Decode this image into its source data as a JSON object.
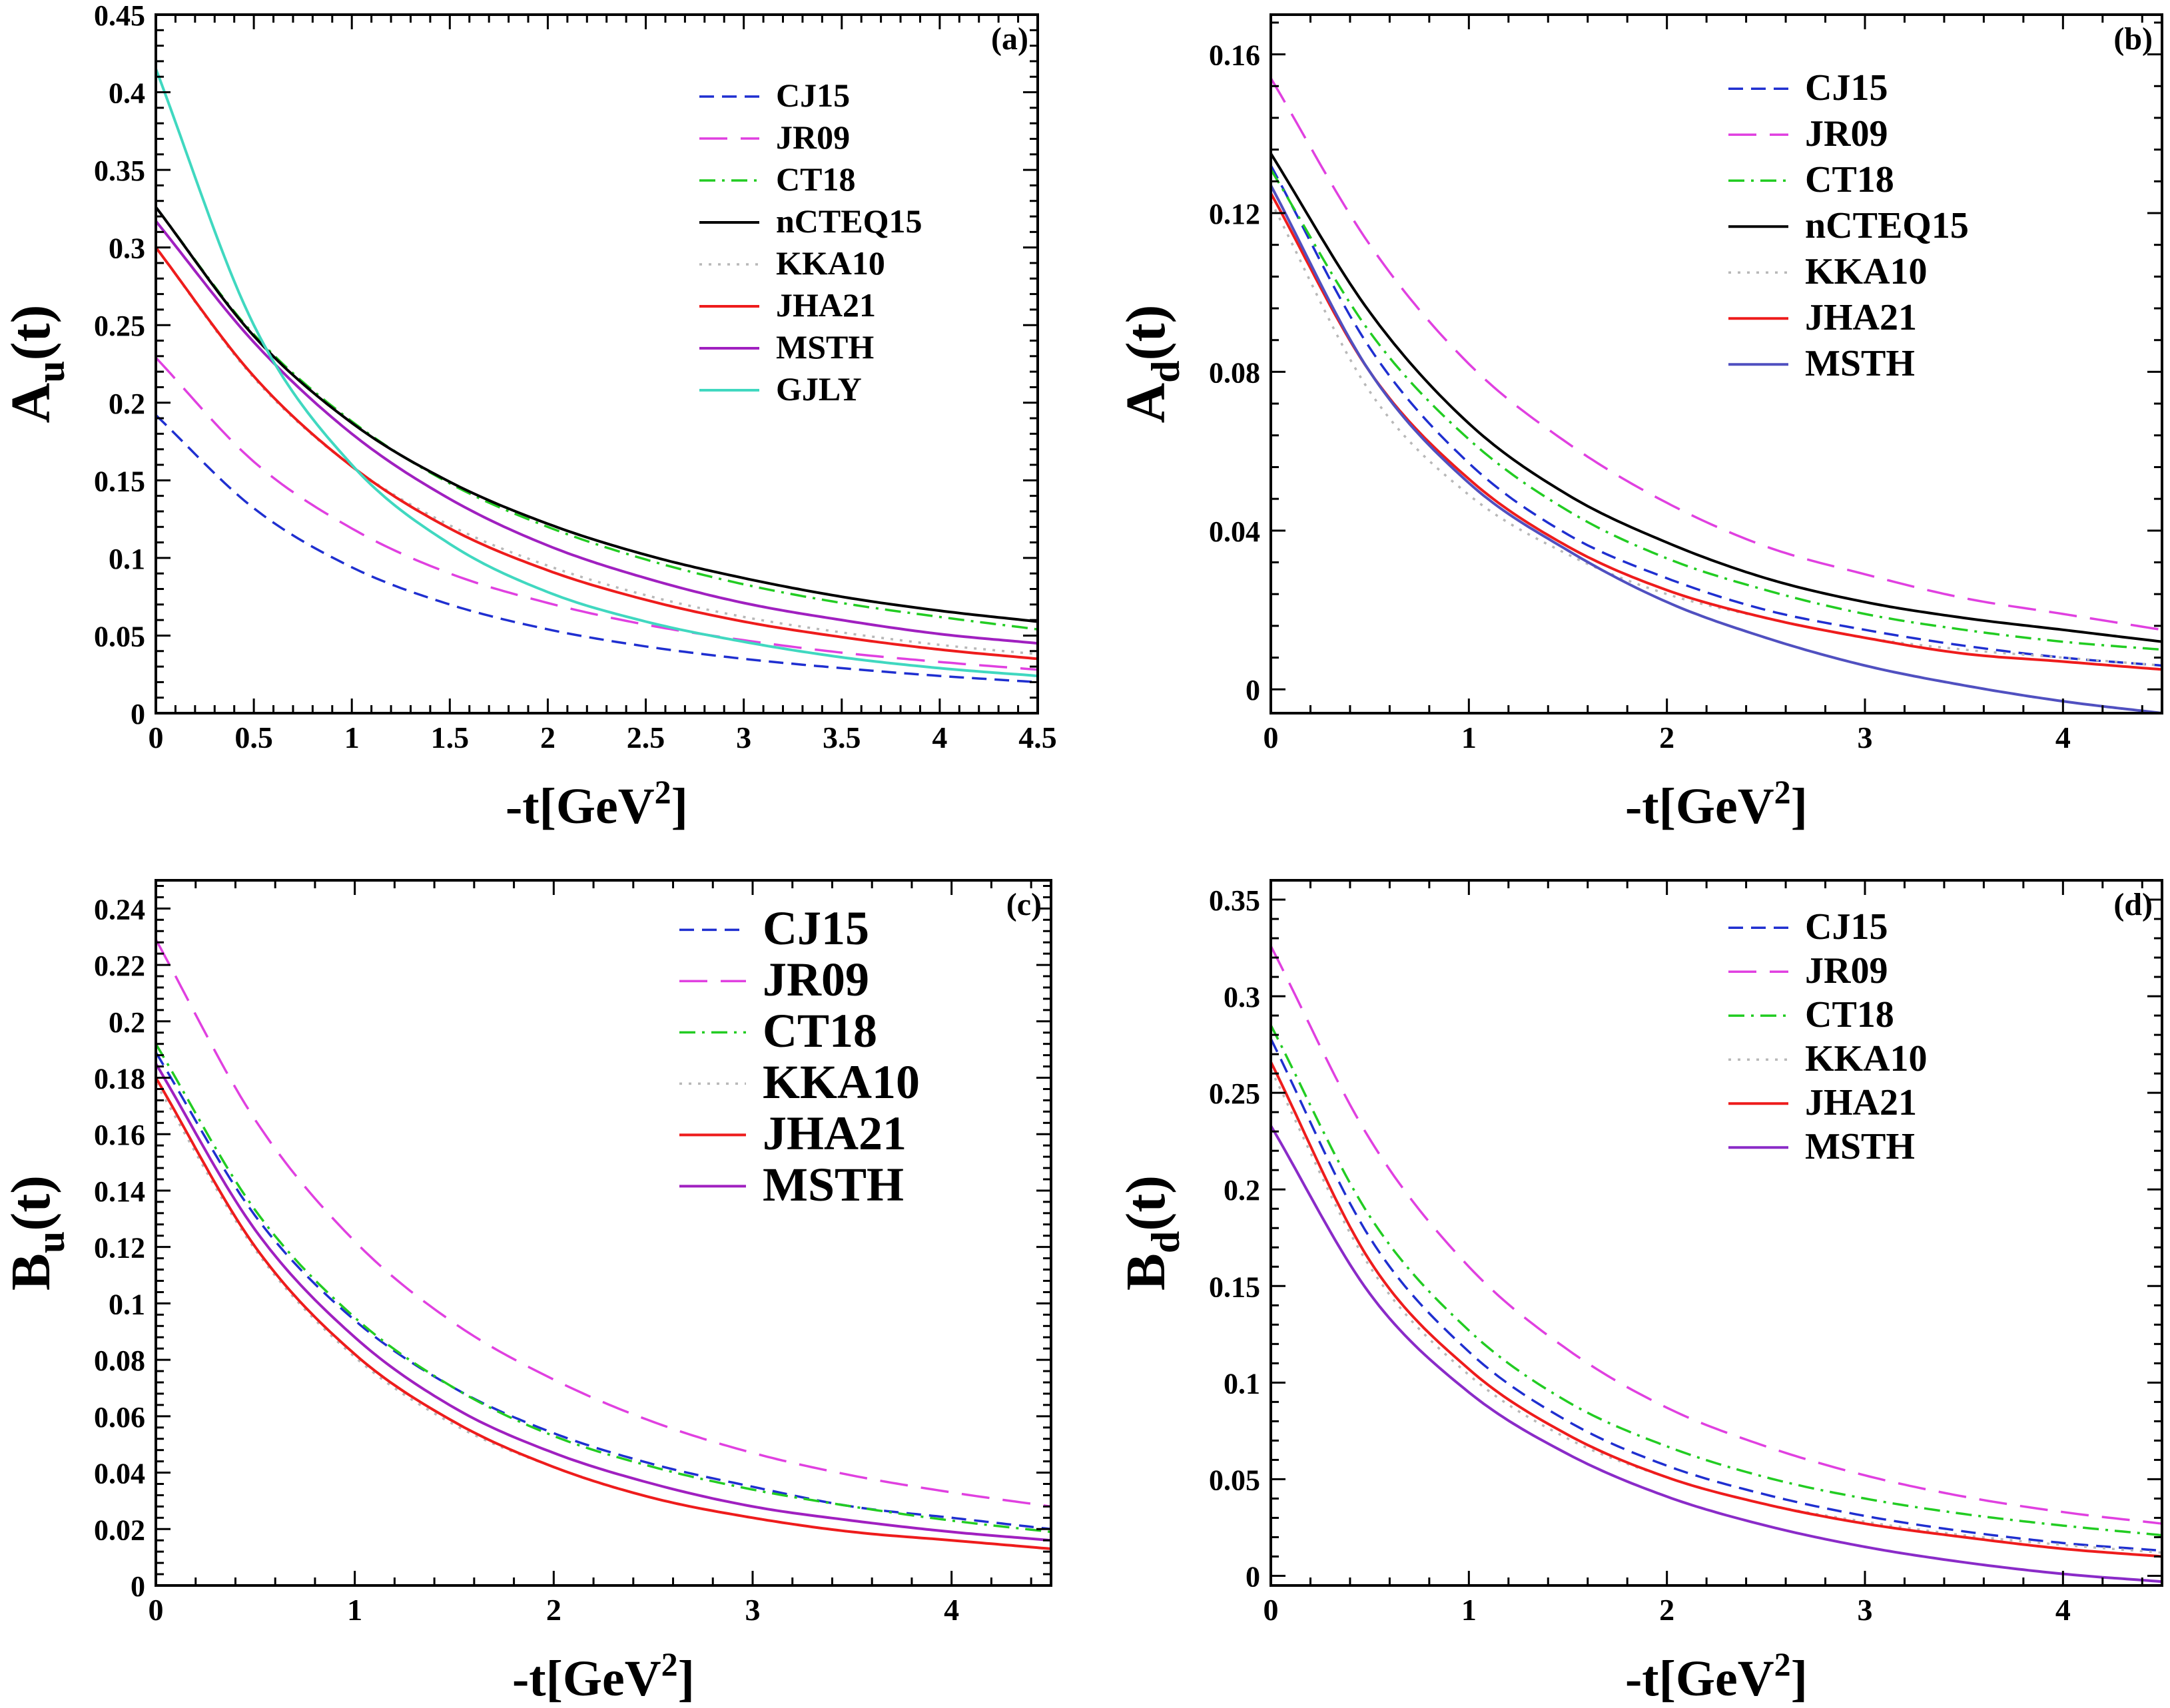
{
  "colors": {
    "CJ15": "#1f2fd0",
    "JR09": "#e040e0",
    "CT18": "#22cc22",
    "nCTEQ15": "#000000",
    "KKA10": "#b8b8b8",
    "JHA21": "#ee1c1c",
    "MSTH_a": "#a020c0",
    "MSTH_b": "#5050c0",
    "MSTH_c": "#a020c0",
    "MSTH_d": "#8a2bc8",
    "GJLY": "#40d8c0",
    "KKA10_accent": "#f0a030"
  },
  "chart_data": [
    {
      "type": "line",
      "panel_label": "(a)",
      "xlabel": "-t[GeV",
      "xlabel_sup": "2",
      "xlabel_close": "]",
      "ylabel_main": "A",
      "ylabel_sub": "u",
      "ylabel_tail": "(t)",
      "xlim": [
        0,
        4.5
      ],
      "ylim": [
        0,
        0.45
      ],
      "xticks": [
        0,
        0.5,
        1,
        1.5,
        2,
        2.5,
        3,
        3.5,
        4,
        4.5
      ],
      "xtick_labels": [
        "0",
        "0.5",
        "1",
        "1.5",
        "2",
        "2.5",
        "3",
        "3.5",
        "4",
        "4.5"
      ],
      "yticks": [
        0,
        0.05,
        0.1,
        0.15,
        0.2,
        0.25,
        0.3,
        0.35,
        0.4,
        0.45
      ],
      "ytick_labels": [
        "0",
        "0.05",
        "0.1",
        "0.15",
        "0.2",
        "0.25",
        "0.3",
        "0.35",
        "0.4",
        "0.45"
      ],
      "grid": false,
      "legend": "top-right",
      "x": [
        0,
        0.5,
        1,
        1.5,
        2,
        2.5,
        3,
        3.5,
        4,
        4.5
      ],
      "series": [
        {
          "name": "CJ15",
          "style": "dash",
          "values": [
            0.192,
            0.132,
            0.094,
            0.07,
            0.054,
            0.043,
            0.035,
            0.029,
            0.024,
            0.02
          ]
        },
        {
          "name": "JR09",
          "style": "longdash",
          "values": [
            0.229,
            0.162,
            0.119,
            0.09,
            0.071,
            0.057,
            0.047,
            0.039,
            0.033,
            0.028
          ]
        },
        {
          "name": "CT18",
          "style": "dashdot",
          "values": [
            0.326,
            0.244,
            0.188,
            0.148,
            0.12,
            0.099,
            0.083,
            0.071,
            0.062,
            0.054
          ]
        },
        {
          "name": "nCTEQ15",
          "style": "solid",
          "values": [
            0.326,
            0.243,
            0.187,
            0.149,
            0.122,
            0.102,
            0.087,
            0.075,
            0.066,
            0.059
          ]
        },
        {
          "name": "KKA10",
          "style": "dot",
          "values": [
            0.3,
            0.216,
            0.159,
            0.121,
            0.095,
            0.076,
            0.062,
            0.052,
            0.044,
            0.038
          ]
        },
        {
          "name": "JHA21",
          "style": "solid",
          "values": [
            0.3,
            0.217,
            0.159,
            0.119,
            0.092,
            0.073,
            0.059,
            0.049,
            0.041,
            0.035
          ]
        },
        {
          "name": "MSTH",
          "style": "solid",
          "values": [
            0.317,
            0.239,
            0.18,
            0.138,
            0.108,
            0.087,
            0.071,
            0.06,
            0.051,
            0.045
          ]
        },
        {
          "name": "GJLY",
          "style": "solid",
          "values": [
            0.415,
            0.25,
            0.16,
            0.109,
            0.078,
            0.059,
            0.046,
            0.036,
            0.029,
            0.024
          ]
        }
      ]
    },
    {
      "type": "line",
      "panel_label": "(b)",
      "xlabel": "-t[GeV",
      "xlabel_sup": "2",
      "xlabel_close": "]",
      "ylabel_main": "A",
      "ylabel_sub": "d",
      "ylabel_tail": "(t)",
      "xlim": [
        0,
        4.5
      ],
      "ylim": [
        -0.006,
        0.17
      ],
      "xticks": [
        0,
        1,
        2,
        3,
        4
      ],
      "xtick_labels": [
        "0",
        "1",
        "2",
        "3",
        "4"
      ],
      "yticks": [
        0,
        0.04,
        0.08,
        0.12,
        0.16
      ],
      "ytick_labels": [
        "0",
        "0.04",
        "0.08",
        "0.12",
        "0.16"
      ],
      "grid": false,
      "legend": "top-right",
      "x": [
        0,
        0.5,
        1,
        1.5,
        2,
        2.5,
        3,
        3.5,
        4,
        4.5
      ],
      "series": [
        {
          "name": "CJ15",
          "style": "dash",
          "values": [
            0.132,
            0.086,
            0.057,
            0.039,
            0.028,
            0.02,
            0.015,
            0.011,
            0.008,
            0.006
          ]
        },
        {
          "name": "JR09",
          "style": "longdash",
          "values": [
            0.154,
            0.112,
            0.082,
            0.062,
            0.047,
            0.036,
            0.029,
            0.023,
            0.019,
            0.015
          ]
        },
        {
          "name": "CT18",
          "style": "dashdot",
          "values": [
            0.131,
            0.09,
            0.063,
            0.045,
            0.033,
            0.025,
            0.019,
            0.015,
            0.012,
            0.01
          ]
        },
        {
          "name": "nCTEQ15",
          "style": "solid",
          "values": [
            0.135,
            0.095,
            0.067,
            0.049,
            0.037,
            0.028,
            0.022,
            0.018,
            0.015,
            0.012
          ]
        },
        {
          "name": "KKA10",
          "style": "dot",
          "values": [
            0.123,
            0.075,
            0.049,
            0.034,
            0.024,
            0.018,
            0.013,
            0.01,
            0.008,
            0.006
          ]
        },
        {
          "name": "JHA21",
          "style": "solid",
          "values": [
            0.125,
            0.08,
            0.053,
            0.036,
            0.025,
            0.018,
            0.013,
            0.009,
            0.007,
            0.005
          ]
        },
        {
          "name": "MSTH",
          "style": "solid",
          "values": [
            0.127,
            0.08,
            0.052,
            0.035,
            0.022,
            0.013,
            0.006,
            0.001,
            -0.003,
            -0.006
          ]
        }
      ]
    },
    {
      "type": "line",
      "panel_label": "(c)",
      "xlabel": "-t[GeV",
      "xlabel_sup": "2",
      "xlabel_close": "]",
      "ylabel_main": "B",
      "ylabel_sub": "u",
      "ylabel_tail": "(t)",
      "xlim": [
        0,
        4.5
      ],
      "ylim": [
        0,
        0.25
      ],
      "xticks": [
        0,
        1,
        2,
        3,
        4
      ],
      "xtick_labels": [
        "0",
        "1",
        "2",
        "3",
        "4"
      ],
      "yticks": [
        0,
        0.02,
        0.04,
        0.06,
        0.08,
        0.1,
        0.12,
        0.14,
        0.16,
        0.18,
        0.2,
        0.22,
        0.24
      ],
      "ytick_labels": [
        "0",
        "0.02",
        "0.04",
        "0.06",
        "0.08",
        "0.1",
        "0.12",
        "0.14",
        "0.16",
        "0.18",
        "0.2",
        "0.22",
        "0.24"
      ],
      "grid": false,
      "legend": "top-right",
      "x": [
        0,
        0.5,
        1,
        1.5,
        2,
        2.5,
        3,
        3.5,
        4,
        4.5
      ],
      "series": [
        {
          "name": "CJ15",
          "style": "dash",
          "values": [
            0.189,
            0.131,
            0.094,
            0.07,
            0.054,
            0.043,
            0.035,
            0.028,
            0.024,
            0.02
          ]
        },
        {
          "name": "JR09",
          "style": "longdash",
          "values": [
            0.229,
            0.165,
            0.122,
            0.093,
            0.073,
            0.058,
            0.047,
            0.039,
            0.033,
            0.028
          ]
        },
        {
          "name": "CT18",
          "style": "dashdot",
          "values": [
            0.192,
            0.133,
            0.095,
            0.07,
            0.053,
            0.042,
            0.034,
            0.028,
            0.023,
            0.019
          ]
        },
        {
          "name": "KKA10",
          "style": "dot",
          "values": [
            0.178,
            0.119,
            0.081,
            0.057,
            0.042,
            0.031,
            0.024,
            0.019,
            0.016,
            0.013
          ]
        },
        {
          "name": "JHA21",
          "style": "solid",
          "values": [
            0.18,
            0.12,
            0.082,
            0.058,
            0.042,
            0.031,
            0.024,
            0.019,
            0.016,
            0.013
          ]
        },
        {
          "name": "MSTH",
          "style": "solid",
          "values": [
            0.185,
            0.126,
            0.088,
            0.063,
            0.047,
            0.036,
            0.028,
            0.023,
            0.019,
            0.016
          ]
        }
      ]
    },
    {
      "type": "line",
      "panel_label": "(d)",
      "xlabel": "-t[GeV",
      "xlabel_sup": "2",
      "xlabel_close": "]",
      "ylabel_main": "B",
      "ylabel_sub": "d",
      "ylabel_tail": "(t)",
      "xlim": [
        0,
        4.5
      ],
      "ylim": [
        -0.005,
        0.36
      ],
      "xticks": [
        0,
        1,
        2,
        3,
        4
      ],
      "xtick_labels": [
        "0",
        "1",
        "2",
        "3",
        "4"
      ],
      "yticks": [
        0,
        0.05,
        0.1,
        0.15,
        0.2,
        0.25,
        0.3,
        0.35
      ],
      "ytick_labels": [
        "0",
        "0.05",
        "0.1",
        "0.15",
        "0.2",
        "0.25",
        "0.3",
        "0.35"
      ],
      "grid": false,
      "legend": "top-right",
      "x": [
        0,
        0.5,
        1,
        1.5,
        2,
        2.5,
        3,
        3.5,
        4,
        4.5
      ],
      "series": [
        {
          "name": "CJ15",
          "style": "dash",
          "values": [
            0.278,
            0.175,
            0.116,
            0.08,
            0.057,
            0.042,
            0.031,
            0.023,
            0.017,
            0.013
          ]
        },
        {
          "name": "JR09",
          "style": "longdash",
          "values": [
            0.326,
            0.226,
            0.16,
            0.117,
            0.087,
            0.067,
            0.052,
            0.041,
            0.033,
            0.027
          ]
        },
        {
          "name": "CT18",
          "style": "dashdot",
          "values": [
            0.285,
            0.186,
            0.127,
            0.09,
            0.067,
            0.051,
            0.04,
            0.032,
            0.026,
            0.021
          ]
        },
        {
          "name": "KKA10",
          "style": "dot",
          "values": [
            0.262,
            0.16,
            0.104,
            0.071,
            0.051,
            0.037,
            0.028,
            0.021,
            0.016,
            0.012
          ]
        },
        {
          "name": "JHA21",
          "style": "solid",
          "values": [
            0.266,
            0.163,
            0.107,
            0.073,
            0.051,
            0.037,
            0.027,
            0.02,
            0.014,
            0.01
          ]
        },
        {
          "name": "MSTH",
          "style": "solid",
          "values": [
            0.233,
            0.146,
            0.095,
            0.063,
            0.041,
            0.026,
            0.015,
            0.007,
            0.001,
            -0.003
          ]
        }
      ]
    }
  ]
}
